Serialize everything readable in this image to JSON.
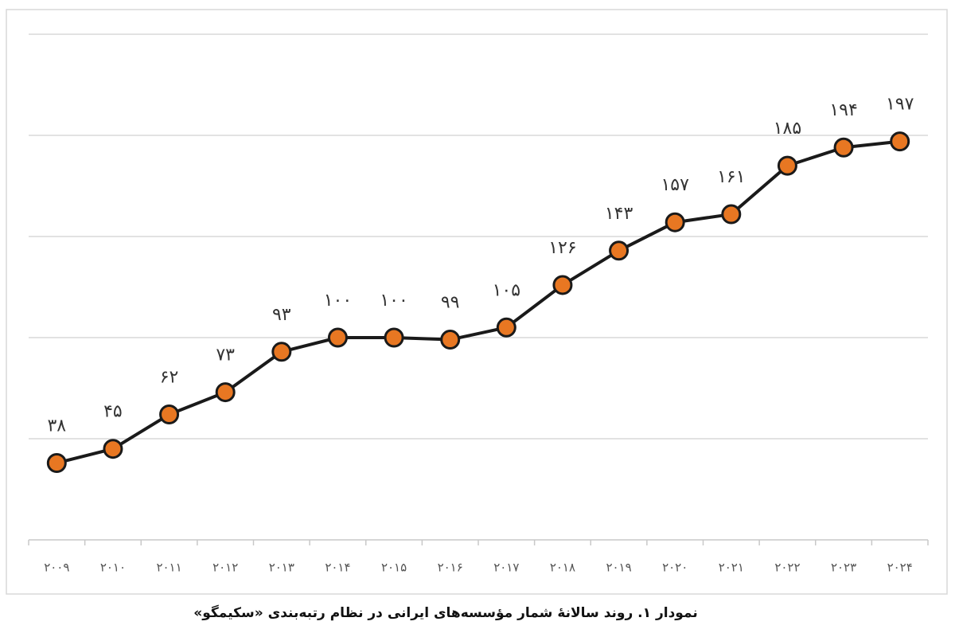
{
  "chart_data": {
    "type": "line",
    "title": "نمودار ۱. روند سالانهٔ شمار مؤسسه‌های ایرانی در نظام رتبه‌بندی «سکیمگو»",
    "categories": [
      "۲۰۰۹",
      "۲۰۱۰",
      "۲۰۱۱",
      "۲۰۱۲",
      "۲۰۱۳",
      "۲۰۱۴",
      "۲۰۱۵",
      "۲۰۱۶",
      "۲۰۱۷",
      "۲۰۱۸",
      "۲۰۱۹",
      "۲۰۲۰",
      "۲۰۲۱",
      "۲۰۲۲",
      "۲۰۲۳",
      "۲۰۲۴"
    ],
    "values": [
      38,
      45,
      62,
      73,
      93,
      100,
      100,
      99,
      105,
      126,
      143,
      157,
      161,
      185,
      194,
      197
    ],
    "value_labels": [
      "۳۸",
      "۴۵",
      "۶۲",
      "۷۳",
      "۹۳",
      "۱۰۰",
      "۱۰۰",
      "۹۹",
      "۱۰۵",
      "۱۲۶",
      "۱۴۳",
      "۱۵۷",
      "۱۶۱",
      "۱۸۵",
      "۱۹۴",
      "۱۹۷"
    ],
    "color": "#e87722",
    "line_color": "#1a1a1a",
    "ylim": [
      0,
      250
    ],
    "ygrid": [
      50,
      100,
      150,
      200,
      250
    ],
    "grid": true
  }
}
